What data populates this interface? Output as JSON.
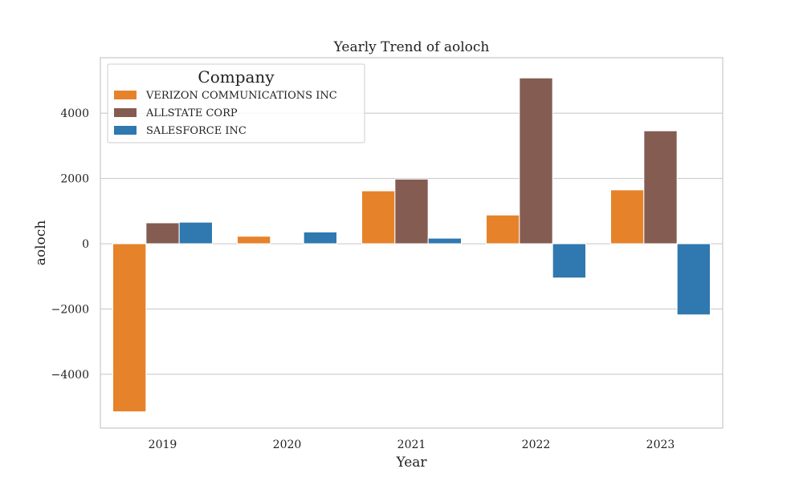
{
  "chart_data": {
    "type": "bar",
    "title": "Yearly Trend of aoloch",
    "xlabel": "Year",
    "ylabel": "aoloch",
    "categories": [
      "2019",
      "2020",
      "2021",
      "2022",
      "2023"
    ],
    "series": [
      {
        "name": "VERIZON COMMUNICATIONS INC",
        "color": "#e6832a",
        "values": [
          -5150,
          230,
          1620,
          880,
          1650
        ]
      },
      {
        "name": "ALLSTATE CORP",
        "color": "#845c52",
        "values": [
          640,
          0,
          1980,
          5080,
          3460
        ]
      },
      {
        "name": "SALESFORCE INC",
        "color": "#2f78b0",
        "values": [
          660,
          360,
          170,
          -1050,
          -2180
        ]
      }
    ],
    "ylim": [
      -5650,
      5700
    ],
    "yticks": [
      -4000,
      -2000,
      0,
      2000,
      4000
    ],
    "ytick_labels": [
      "−4000",
      "−2000",
      "0",
      "2000",
      "4000"
    ],
    "grid": true,
    "legend": {
      "title": "Company",
      "placement": "top-left"
    }
  }
}
